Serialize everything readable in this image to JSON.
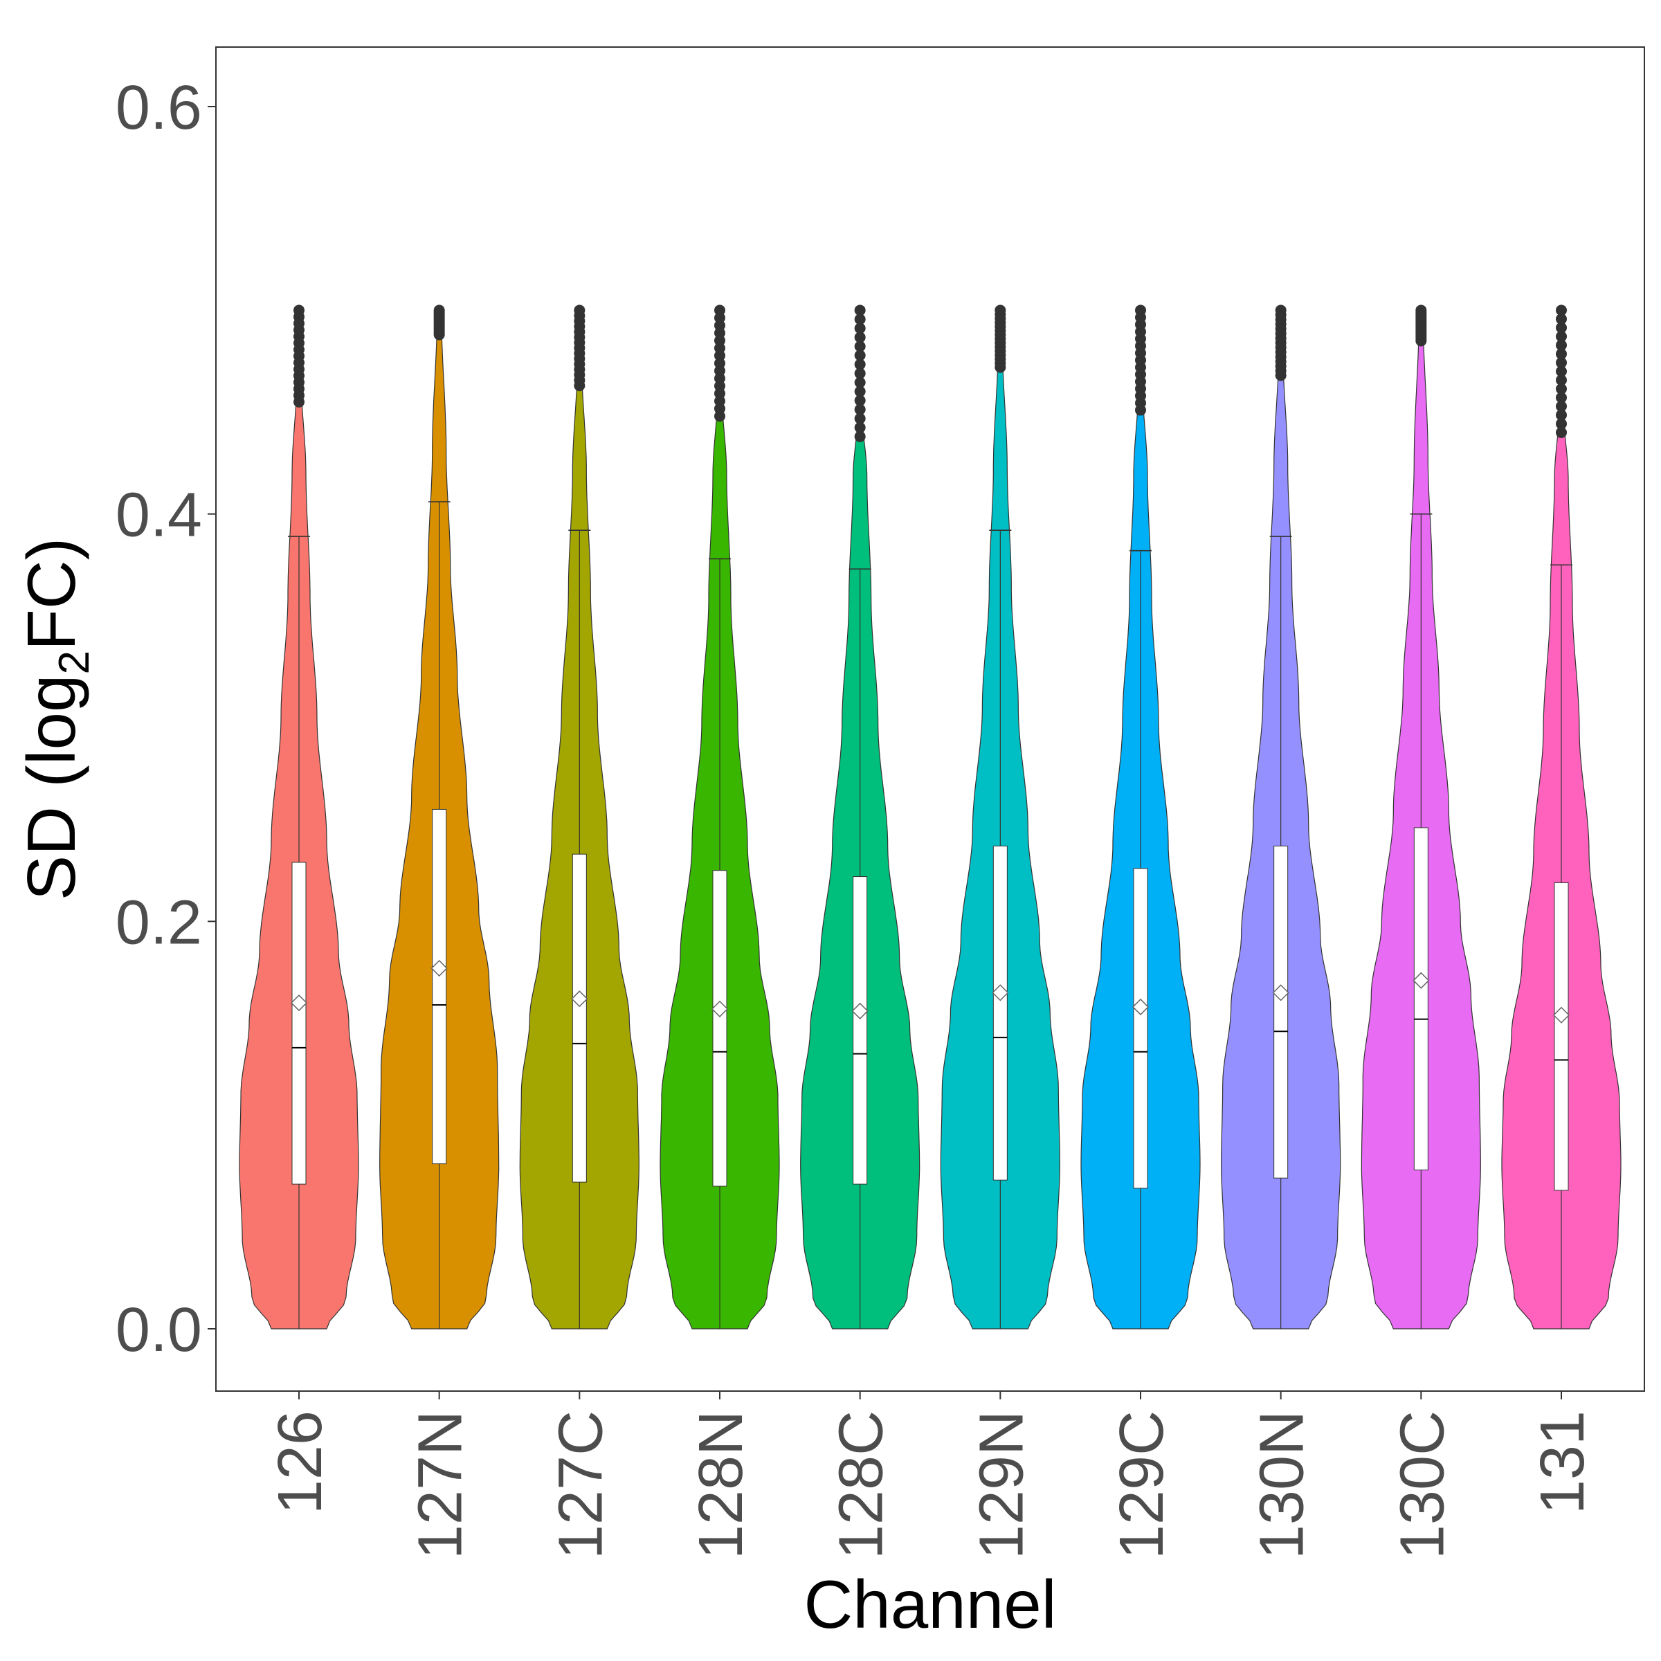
{
  "chart_data": {
    "type": "violin",
    "xlabel": "Channel",
    "ylabel": {
      "main": "SD (log",
      "subscript": "2",
      "tail": "FC)"
    },
    "ylim": [
      -0.03,
      0.63
    ],
    "y_ticks": [
      {
        "value": 0.0,
        "label": "0.0"
      },
      {
        "value": 0.2,
        "label": "0.2"
      },
      {
        "value": 0.4,
        "label": "0.4"
      },
      {
        "value": 0.6,
        "label": "0.6"
      }
    ],
    "grid": false,
    "categories": [
      "126",
      "127N",
      "127C",
      "128N",
      "128C",
      "129N",
      "129C",
      "130N",
      "130C",
      "131"
    ],
    "series": [
      {
        "name": "126",
        "color": "#F8766D",
        "q1": 0.071,
        "median": 0.138,
        "q3": 0.229,
        "mean": 0.16,
        "whisker_high": 0.389,
        "violin_top": 0.467,
        "outliers_max": 0.5
      },
      {
        "name": "127N",
        "color": "#D89000",
        "q1": 0.081,
        "median": 0.159,
        "q3": 0.255,
        "mean": 0.177,
        "whisker_high": 0.406,
        "violin_top": 0.5,
        "outliers_max": 0.5
      },
      {
        "name": "127C",
        "color": "#A3A500",
        "q1": 0.072,
        "median": 0.14,
        "q3": 0.233,
        "mean": 0.162,
        "whisker_high": 0.392,
        "violin_top": 0.475,
        "outliers_max": 0.5
      },
      {
        "name": "128N",
        "color": "#39B600",
        "q1": 0.07,
        "median": 0.136,
        "q3": 0.225,
        "mean": 0.157,
        "whisker_high": 0.378,
        "violin_top": 0.46,
        "outliers_max": 0.5
      },
      {
        "name": "128C",
        "color": "#00BF7D",
        "q1": 0.071,
        "median": 0.135,
        "q3": 0.222,
        "mean": 0.156,
        "whisker_high": 0.373,
        "violin_top": 0.45,
        "outliers_max": 0.5
      },
      {
        "name": "129N",
        "color": "#00BFC4",
        "q1": 0.073,
        "median": 0.143,
        "q3": 0.237,
        "mean": 0.165,
        "whisker_high": 0.392,
        "violin_top": 0.484,
        "outliers_max": 0.5
      },
      {
        "name": "129C",
        "color": "#00B0F6",
        "q1": 0.069,
        "median": 0.136,
        "q3": 0.226,
        "mean": 0.158,
        "whisker_high": 0.382,
        "violin_top": 0.463,
        "outliers_max": 0.5
      },
      {
        "name": "130N",
        "color": "#9590FF",
        "q1": 0.074,
        "median": 0.146,
        "q3": 0.237,
        "mean": 0.165,
        "whisker_high": 0.389,
        "violin_top": 0.48,
        "outliers_max": 0.5
      },
      {
        "name": "130C",
        "color": "#E76BF3",
        "q1": 0.078,
        "median": 0.152,
        "q3": 0.246,
        "mean": 0.171,
        "whisker_high": 0.4,
        "violin_top": 0.497,
        "outliers_max": 0.5
      },
      {
        "name": "131",
        "color": "#FF62BC",
        "q1": 0.068,
        "median": 0.132,
        "q3": 0.219,
        "mean": 0.154,
        "whisker_high": 0.375,
        "violin_top": 0.452,
        "outliers_max": 0.5
      }
    ]
  }
}
